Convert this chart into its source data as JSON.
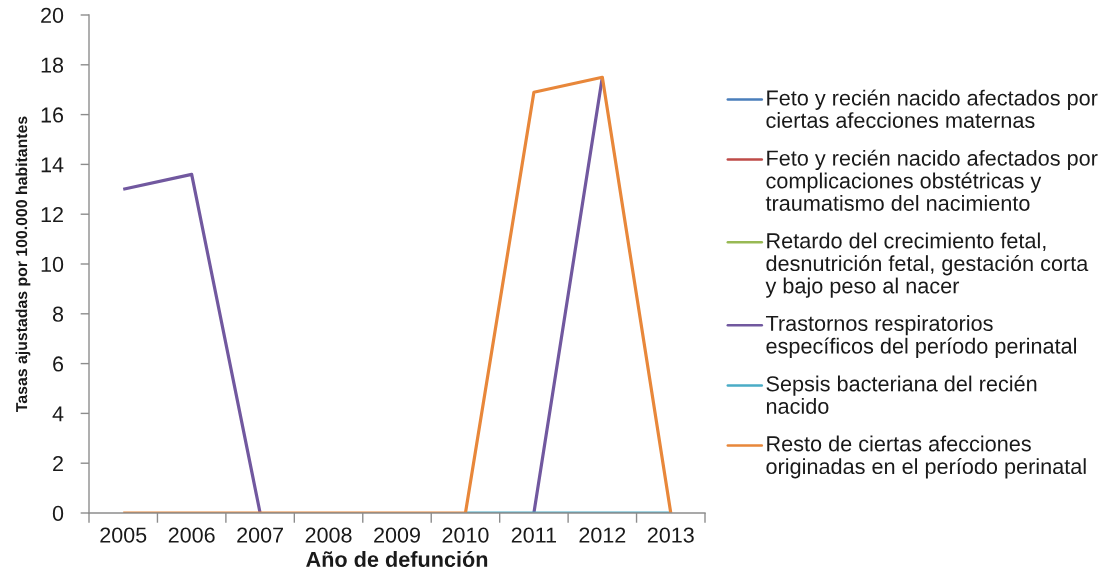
{
  "chart_data": {
    "type": "line",
    "xlabel": "Año de defunción",
    "ylabel": "Tasas ajustadas por 100.000 habitantes",
    "categories": [
      "2005",
      "2006",
      "2007",
      "2008",
      "2009",
      "2010",
      "2011",
      "2012",
      "2013"
    ],
    "ylim": [
      0,
      20
    ],
    "yticks": [
      0,
      2,
      4,
      6,
      8,
      10,
      12,
      14,
      16,
      18,
      20
    ],
    "legend": "right",
    "line_style": "solid",
    "series": [
      {
        "name": "Feto y recién nacido afectados por\nciertas afecciones maternas",
        "color": "#4a7ebb",
        "values": [
          null,
          null,
          null,
          null,
          null,
          null,
          null,
          null,
          null
        ]
      },
      {
        "name": "Feto y recién nacido afectados por\ncomplicaciones obstétricas y\ntraumatismo del nacimiento",
        "color": "#be4b48",
        "values": [
          null,
          null,
          null,
          null,
          null,
          null,
          null,
          null,
          null
        ]
      },
      {
        "name": "Retardo del crecimiento fetal,\ndesnutrición fetal, gestación corta\ny bajo peso al nacer",
        "color": "#98b954",
        "values": [
          null,
          null,
          null,
          null,
          null,
          null,
          null,
          null,
          null
        ]
      },
      {
        "name": "Trastornos respiratorios\nespecíficos del período perinatal",
        "color": "#71589f",
        "values": [
          13.0,
          13.6,
          0,
          null,
          null,
          null,
          0,
          17.5,
          null
        ]
      },
      {
        "name": "Sepsis bacteriana del recién\nnacido",
        "color": "#4aacc6",
        "values": [
          null,
          null,
          null,
          null,
          null,
          0,
          0,
          0,
          0
        ]
      },
      {
        "name": "Resto de ciertas afecciones\noriginadas en el período perinatal",
        "color": "#e8873a",
        "values": [
          0,
          0,
          0,
          0,
          0,
          0,
          16.9,
          17.5,
          0
        ]
      }
    ]
  }
}
